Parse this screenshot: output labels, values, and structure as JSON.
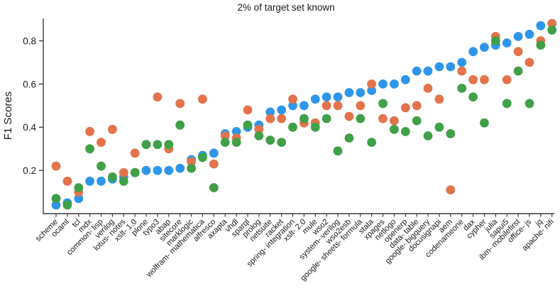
{
  "chart_data": {
    "type": "scatter",
    "title": "2% of target set known",
    "ylabel": "F1 Scores",
    "xlabel": "",
    "ylim": [
      0.0,
      0.9
    ],
    "yticks": [
      0.2,
      0.4,
      0.6,
      0.8
    ],
    "grid": false,
    "legend_position": "none",
    "axis_color": "#3b3b3b",
    "text_color": "#1a1a1a",
    "categories": [
      "scheme",
      "ocaml",
      "tcl",
      "mdx",
      "common- lisp",
      "verilog",
      "lotus- notes",
      "xslt- 1.0",
      "plone",
      "typo3",
      "abap",
      "sitecore",
      "marklogic",
      "wolfram- mathematica",
      "alfresco",
      "axapta",
      "vhdl",
      "sparql",
      "prolog",
      "netsuite",
      "racket",
      "spring- integration",
      "xslt- 2.0",
      "mule",
      "wso2",
      "system- verilog",
      "wso2esb",
      "google- sheets- formula",
      "stata",
      "xpages",
      "netlogo",
      "openerp",
      "data- table",
      "google- bigquery",
      "docusignapi",
      "aem",
      "codenameone",
      "dax",
      "cypher",
      "julia",
      "sapui5",
      "ibm- mobilefirst",
      "office- js",
      "jq",
      "apache- nifi"
    ],
    "series": [
      {
        "name": "blue-series",
        "color": "#2E96EA",
        "values": [
          0.04,
          0.05,
          0.07,
          0.15,
          0.15,
          0.16,
          0.17,
          0.19,
          0.2,
          0.2,
          0.2,
          0.21,
          0.25,
          0.27,
          0.28,
          0.37,
          0.38,
          0.4,
          0.41,
          0.47,
          0.48,
          0.5,
          0.5,
          0.53,
          0.54,
          0.54,
          0.56,
          0.56,
          0.57,
          0.6,
          0.6,
          0.62,
          0.66,
          0.66,
          0.68,
          0.68,
          0.7,
          0.75,
          0.77,
          0.78,
          0.79,
          0.82,
          0.83,
          0.87,
          0.88
        ]
      },
      {
        "name": "orange-series",
        "color": "#E2734B",
        "values": [
          0.22,
          0.15,
          0.1,
          0.38,
          0.33,
          0.39,
          0.19,
          0.28,
          0.32,
          0.54,
          0.3,
          0.51,
          0.24,
          0.53,
          0.23,
          0.36,
          0.35,
          0.48,
          0.39,
          0.44,
          0.44,
          0.53,
          0.42,
          0.42,
          0.5,
          0.5,
          0.45,
          0.5,
          0.6,
          0.44,
          0.43,
          0.49,
          0.5,
          0.58,
          0.53,
          0.11,
          0.66,
          0.62,
          0.62,
          0.82,
          0.62,
          0.75,
          0.7,
          0.8,
          0.88
        ]
      },
      {
        "name": "green-series",
        "color": "#3FA047",
        "values": [
          0.07,
          0.04,
          0.12,
          0.3,
          0.22,
          0.17,
          0.15,
          0.19,
          0.32,
          0.32,
          0.32,
          0.41,
          0.21,
          0.26,
          0.12,
          0.33,
          0.33,
          0.41,
          0.36,
          0.34,
          0.33,
          0.4,
          0.44,
          0.4,
          0.44,
          0.29,
          0.35,
          0.44,
          0.33,
          0.51,
          0.39,
          0.38,
          0.43,
          0.36,
          0.4,
          0.37,
          0.58,
          0.54,
          0.42,
          0.8,
          0.51,
          0.66,
          0.51,
          0.78,
          0.85
        ]
      }
    ]
  }
}
